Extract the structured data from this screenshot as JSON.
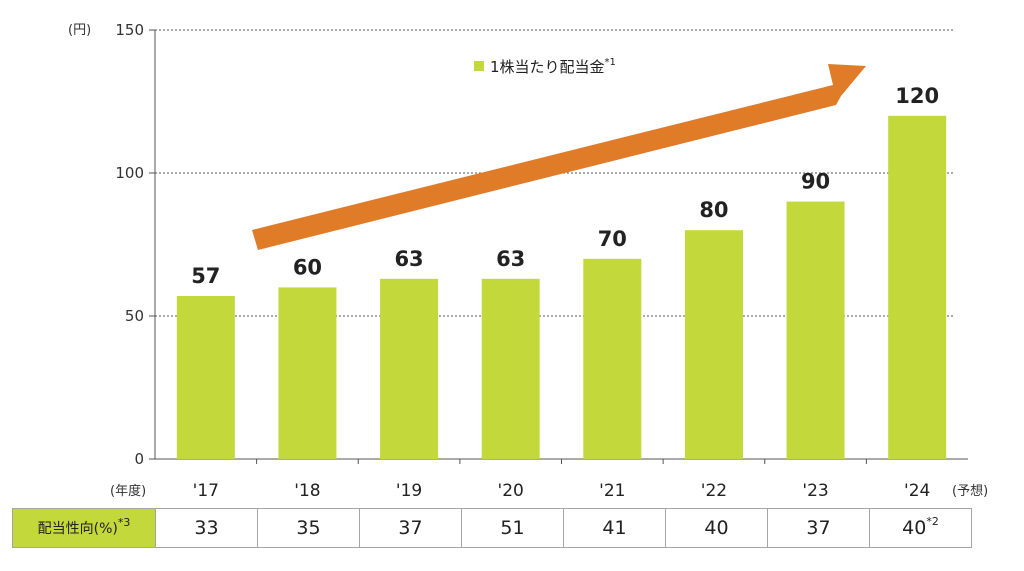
{
  "chart_data": {
    "type": "bar",
    "y_unit": "(円)",
    "x_unit": "(年度)",
    "forecast_label": "(予想)",
    "categories": [
      "'17",
      "'18",
      "'19",
      "'20",
      "'21",
      "'22",
      "'23",
      "'24"
    ],
    "series": [
      {
        "name": "1株当たり配当金",
        "name_note": "*1",
        "values": [
          57,
          60,
          63,
          63,
          70,
          80,
          90,
          120
        ]
      }
    ],
    "data_labels": [
      "57",
      "60",
      "63",
      "63",
      "70",
      "80",
      "90",
      "120"
    ],
    "ylim": [
      0,
      150
    ],
    "yticks": [
      0,
      50,
      100,
      150
    ],
    "grid": "dotted horizontal",
    "legend_position": "top-center",
    "bar_color": "#c3d83b",
    "arrow_color": "#e07b28"
  },
  "payout_table": {
    "header": "配当性向(%)",
    "header_note": "*3",
    "values": [
      "33",
      "35",
      "37",
      "51",
      "41",
      "40",
      "37",
      "40"
    ],
    "last_note": "*2"
  }
}
